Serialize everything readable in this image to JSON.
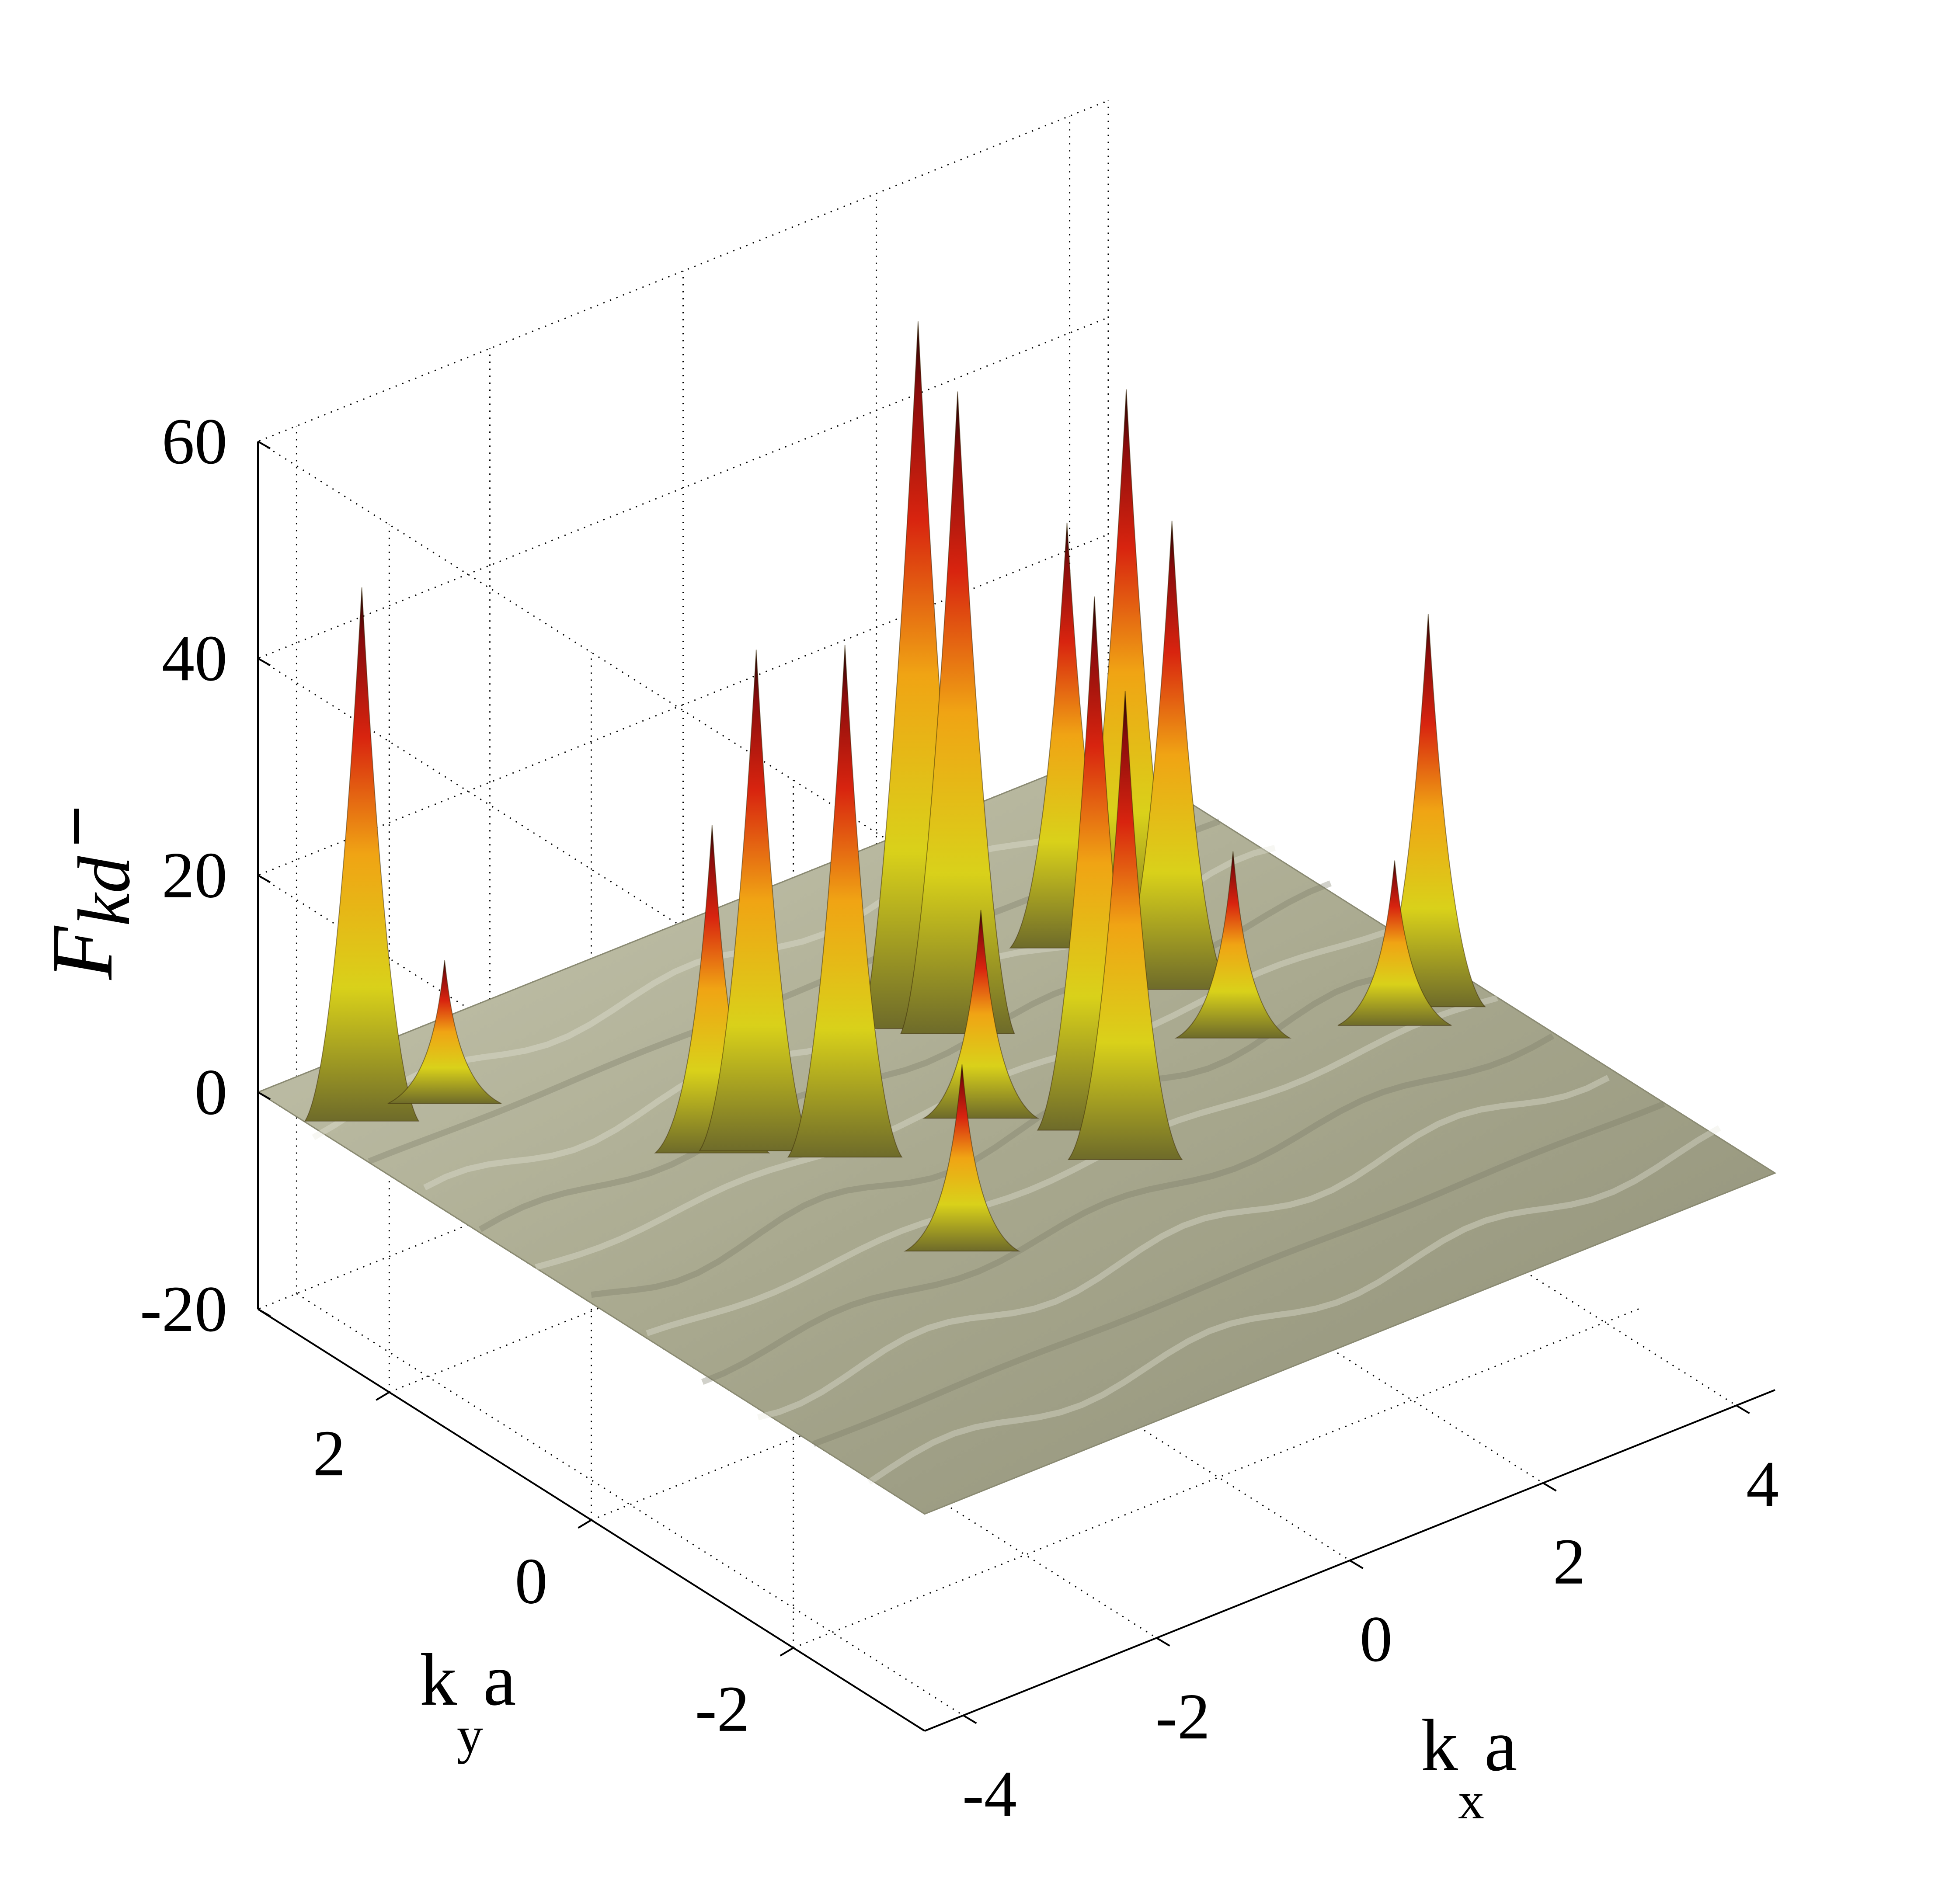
{
  "chart_data": {
    "type": "surface",
    "xlabel": "k",
    "xlabel_subscript": "x",
    "xlabel_suffix": "a",
    "ylabel": "k",
    "ylabel_subscript": "y",
    "ylabel_suffix": "a",
    "zlabel": "F",
    "zlabel_subscript": "kd",
    "xlim": [
      -4.4,
      4.4
    ],
    "ylim": [
      -3.3,
      3.3
    ],
    "zlim": [
      -20,
      60
    ],
    "x_ticks": [
      "-4",
      "-2",
      "0",
      "2",
      "4"
    ],
    "x_tick_values": [
      -4,
      -2,
      0,
      2,
      4
    ],
    "y_ticks": [
      "-2",
      "0",
      "2"
    ],
    "y_tick_values": [
      -2,
      0,
      2
    ],
    "z_ticks": [
      "-20",
      "0",
      "20",
      "40",
      "60"
    ],
    "z_tick_values": [
      -20,
      0,
      20,
      40,
      60
    ],
    "grid": true,
    "colormap": "hot",
    "baseline_color": "#b7b79e",
    "peaks": [
      {
        "x": -3.9,
        "y": 2.75,
        "height": 48
      },
      {
        "x": -3.2,
        "y": 2.6,
        "height": 12
      },
      {
        "x": -1.7,
        "y": 0.95,
        "height": 45
      },
      {
        "x": -2.0,
        "y": 1.1,
        "height": 29
      },
      {
        "x": -1.2,
        "y": 0.55,
        "height": 46
      },
      {
        "x": -1.4,
        "y": -0.8,
        "height": 16
      },
      {
        "x": 0.55,
        "y": 1.5,
        "height": 64
      },
      {
        "x": 0.75,
        "y": 1.3,
        "height": 58
      },
      {
        "x": 0.65,
        "y": -0.15,
        "height": 48
      },
      {
        "x": 0.05,
        "y": 0.4,
        "height": 18
      },
      {
        "x": 0.55,
        "y": -0.55,
        "height": 42
      },
      {
        "x": 2.3,
        "y": 1.7,
        "height": 38
      },
      {
        "x": 2.6,
        "y": 1.4,
        "height": 51
      },
      {
        "x": 2.55,
        "y": 0.9,
        "height": 42
      },
      {
        "x": 2.45,
        "y": 0.2,
        "height": 16
      },
      {
        "x": 3.6,
        "y": -0.3,
        "height": 14
      },
      {
        "x": 4.0,
        "y": -0.25,
        "height": 35
      }
    ]
  }
}
